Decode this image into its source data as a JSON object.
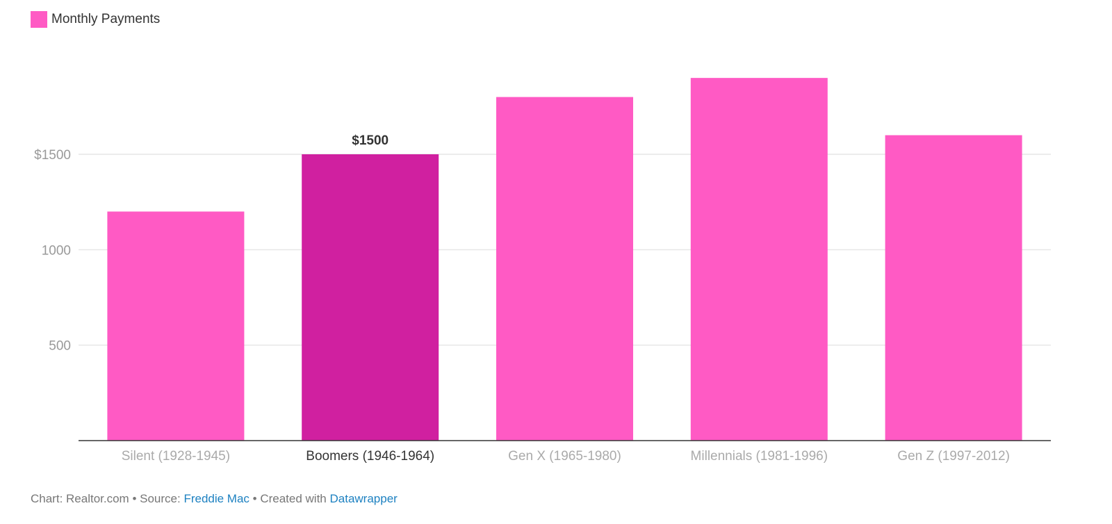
{
  "legend": {
    "label": "Monthly Payments",
    "color": "#ff5ac4"
  },
  "chart_data": {
    "type": "bar",
    "categories": [
      "Silent (1928-1945)",
      "Boomers (1946-1964)",
      "Gen X (1965-1980)",
      "Millennials (1981-1996)",
      "Gen Z (1997-2012)"
    ],
    "series": [
      {
        "name": "Monthly Payments",
        "values": [
          1200,
          1500,
          1800,
          1900,
          1600
        ]
      }
    ],
    "ylim": [
      0,
      2000
    ],
    "yticks": [
      500,
      1000,
      1500
    ],
    "ytick_labels": [
      "500",
      "1000",
      "$1500"
    ],
    "highlight_index": 1,
    "highlight_label": "$1500",
    "grid": true,
    "colors": {
      "bar": "#ff5ac4",
      "highlight": "#d020a0",
      "grid": "#e6e6e6",
      "axis": "#333333",
      "tick": "#999999",
      "label_active": "#333333",
      "label_muted": "#aaaaaa"
    }
  },
  "footer": {
    "prefix": "Chart: Realtor.com • Source: ",
    "source_link": "Freddie Mac",
    "middle": " • Created with ",
    "tool_link": "Datawrapper"
  }
}
